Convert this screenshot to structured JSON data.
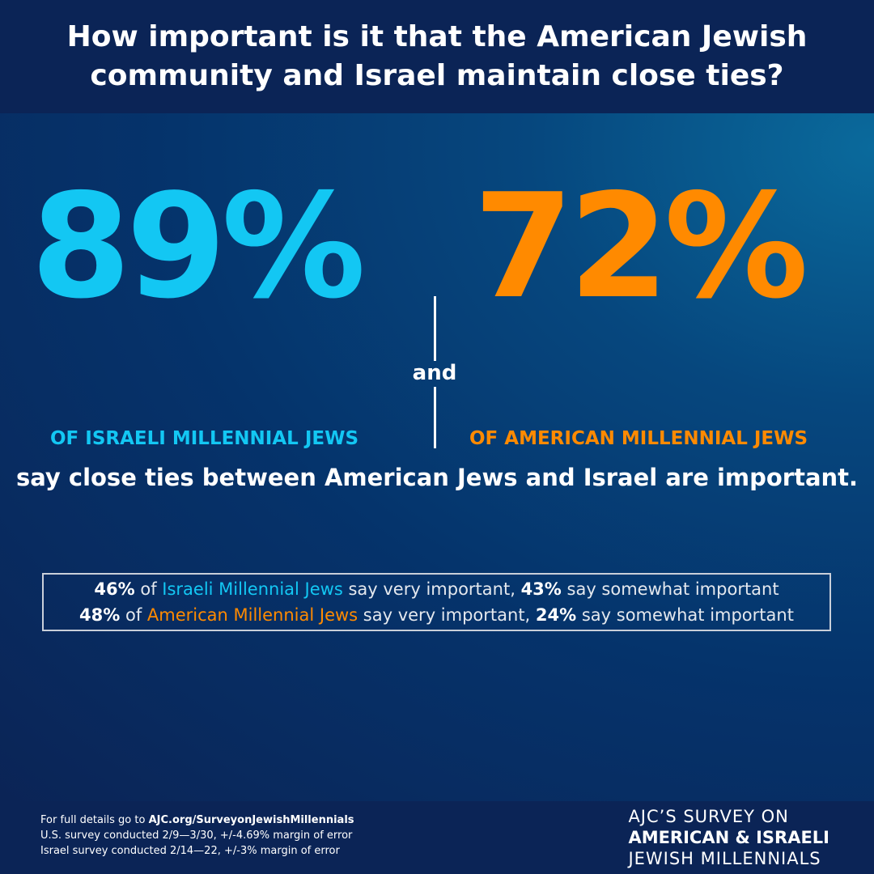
{
  "header": {
    "title": "How important is it that the American Jewish community and Israel maintain close ties?"
  },
  "stats": {
    "israel": {
      "value": "89%",
      "label": "OF ISRAELI MILLENNIAL JEWS"
    },
    "connector": "and",
    "america": {
      "value": "72%",
      "label": "OF AMERICAN MILLENNIAL JEWS"
    },
    "statement": "say close ties between American Jews and Israel are important."
  },
  "details": {
    "israel": {
      "very_pct": "46%",
      "group": "Israeli Millennial Jews",
      "very_text": " say very important, ",
      "somewhat_pct": "43%",
      "somewhat_text": " say somewhat important",
      "of": " of "
    },
    "america": {
      "very_pct": "48%",
      "group": "American Millennial Jews",
      "very_text": " say very important, ",
      "somewhat_pct": "24%",
      "somewhat_text": " say somewhat important",
      "of": " of "
    }
  },
  "footer": {
    "details_prefix": "For full details go to ",
    "details_link": "AJC.org/SurveyonJewishMillennials",
    "us_survey": "U.S. survey conducted 2/9—3/30, +/-4.69% margin of error",
    "israel_survey": "Israel survey conducted 2/14—22, +/-3% margin of error",
    "brand_line1": "AJC’S SURVEY ON",
    "brand_line2": "AMERICAN & ISRAELI",
    "brand_line3": "JEWISH MILLENNIALS"
  },
  "colors": {
    "israel": "#13c7f3",
    "america": "#ff8a00",
    "navy": "#0b2456"
  }
}
